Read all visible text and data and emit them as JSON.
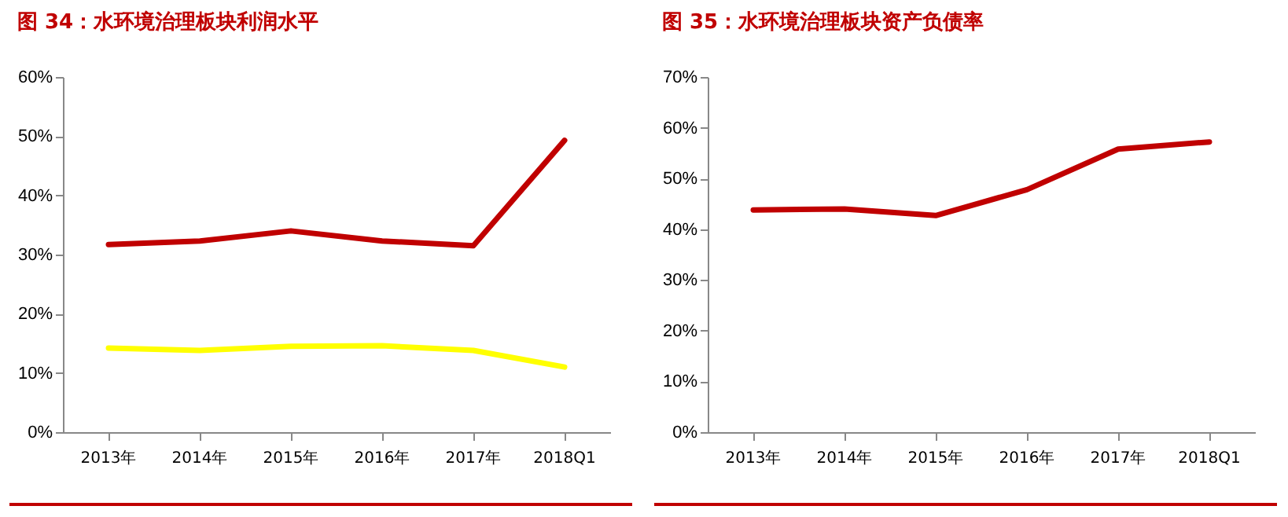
{
  "chart_data": [
    {
      "type": "line",
      "title": "图 34：水环境治理板块利润水平",
      "categories": [
        "2013年",
        "2014年",
        "2015年",
        "2016年",
        "2017年",
        "2018Q1"
      ],
      "series": [
        {
          "color": "#c00000",
          "values": [
            31.7,
            32.3,
            34,
            32.3,
            31.5,
            49.3
          ]
        },
        {
          "color": "#ffff00",
          "values": [
            14.2,
            13.8,
            14.5,
            14.6,
            13.8,
            11
          ]
        }
      ],
      "ylim": [
        0,
        60
      ],
      "yticks": [
        {
          "value": 0,
          "label": "0%"
        },
        {
          "value": 10,
          "label": "10%"
        },
        {
          "value": 20,
          "label": "20%"
        },
        {
          "value": 30,
          "label": "30%"
        },
        {
          "value": 40,
          "label": "40%"
        },
        {
          "value": 50,
          "label": "50%"
        },
        {
          "value": 60,
          "label": "60%"
        }
      ],
      "grid": false,
      "legend": false,
      "marker": "none",
      "line_style": "solid"
    },
    {
      "type": "line",
      "title": "图 35：水环境治理板块资产负债率",
      "categories": [
        "2013年",
        "2014年",
        "2015年",
        "2016年",
        "2017年",
        "2018Q1"
      ],
      "series": [
        {
          "color": "#c00000",
          "values": [
            43.8,
            44,
            42.7,
            47.8,
            55.8,
            57.2
          ]
        }
      ],
      "ylim": [
        0,
        70
      ],
      "yticks": [
        {
          "value": 0,
          "label": "0%"
        },
        {
          "value": 10,
          "label": "10%"
        },
        {
          "value": 20,
          "label": "20%"
        },
        {
          "value": 30,
          "label": "30%"
        },
        {
          "value": 40,
          "label": "40%"
        },
        {
          "value": 50,
          "label": "50%"
        },
        {
          "value": 60,
          "label": "60%"
        },
        {
          "value": 70,
          "label": "70%"
        }
      ],
      "grid": false,
      "legend": false,
      "marker": "none",
      "line_style": "solid"
    }
  ]
}
